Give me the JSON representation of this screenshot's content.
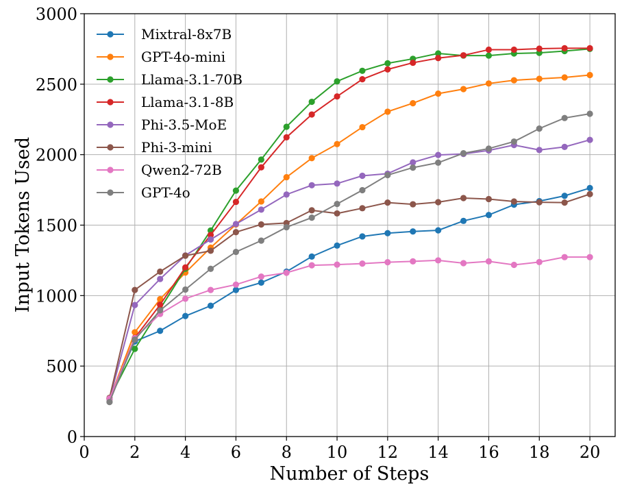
{
  "chart_data": {
    "type": "line",
    "title": "",
    "xlabel": "Number of Steps",
    "ylabel": "Input Tokens Used",
    "xlim": [
      0,
      21
    ],
    "ylim": [
      0,
      3000
    ],
    "xticks": [
      0,
      2,
      4,
      6,
      8,
      10,
      12,
      14,
      16,
      18,
      20
    ],
    "yticks": [
      0,
      500,
      1000,
      1500,
      2000,
      2500,
      3000
    ],
    "grid": true,
    "legend_position": "top-left",
    "x": [
      1,
      2,
      3,
      4,
      5,
      6,
      7,
      8,
      9,
      10,
      11,
      12,
      13,
      14,
      15,
      16,
      17,
      18,
      19,
      20
    ],
    "series": [
      {
        "name": "Mixtral-8x7B",
        "color": "#1f77b4",
        "values": [
          270,
          675,
          750,
          855,
          928,
          1040,
          1092,
          1170,
          1277,
          1355,
          1420,
          1443,
          1455,
          1463,
          1530,
          1572,
          1645,
          1670,
          1708,
          1763
        ]
      },
      {
        "name": "GPT-4o-mini",
        "color": "#ff7f0e",
        "values": [
          265,
          740,
          975,
          1163,
          1340,
          1505,
          1668,
          1840,
          1975,
          2075,
          2195,
          2305,
          2365,
          2433,
          2465,
          2505,
          2528,
          2538,
          2548,
          2565
        ]
      },
      {
        "name": "Llama-3.1-70B",
        "color": "#2ca02c",
        "values": [
          270,
          622,
          905,
          1190,
          1462,
          1745,
          1965,
          2198,
          2375,
          2520,
          2595,
          2648,
          2680,
          2718,
          2703,
          2703,
          2718,
          2722,
          2735,
          2750
        ]
      },
      {
        "name": "Llama-3.1-8B",
        "color": "#d62728",
        "values": [
          270,
          700,
          935,
          1200,
          1430,
          1665,
          1910,
          2123,
          2285,
          2413,
          2535,
          2605,
          2652,
          2685,
          2705,
          2745,
          2745,
          2752,
          2755,
          2755
        ]
      },
      {
        "name": "Phi-3.5-MoE",
        "color": "#9467bd",
        "values": [
          265,
          933,
          1118,
          1285,
          1398,
          1508,
          1610,
          1717,
          1783,
          1795,
          1850,
          1865,
          1945,
          1998,
          2005,
          2030,
          2068,
          2033,
          2055,
          2105
        ]
      },
      {
        "name": "Phi-3-mini",
        "color": "#8c564b",
        "values": [
          275,
          1040,
          1170,
          1283,
          1318,
          1450,
          1505,
          1515,
          1605,
          1583,
          1620,
          1660,
          1648,
          1663,
          1692,
          1685,
          1668,
          1662,
          1660,
          1720
        ]
      },
      {
        "name": "Qwen2-72B",
        "color": "#e377c2",
        "values": [
          270,
          698,
          870,
          978,
          1040,
          1078,
          1135,
          1162,
          1215,
          1220,
          1227,
          1237,
          1243,
          1250,
          1230,
          1243,
          1218,
          1238,
          1273,
          1273
        ]
      },
      {
        "name": "GPT-4o",
        "color": "#7f7f7f",
        "values": [
          245,
          688,
          895,
          1043,
          1190,
          1310,
          1390,
          1485,
          1553,
          1650,
          1748,
          1855,
          1908,
          1943,
          2010,
          2043,
          2093,
          2185,
          2260,
          2290
        ]
      }
    ]
  }
}
